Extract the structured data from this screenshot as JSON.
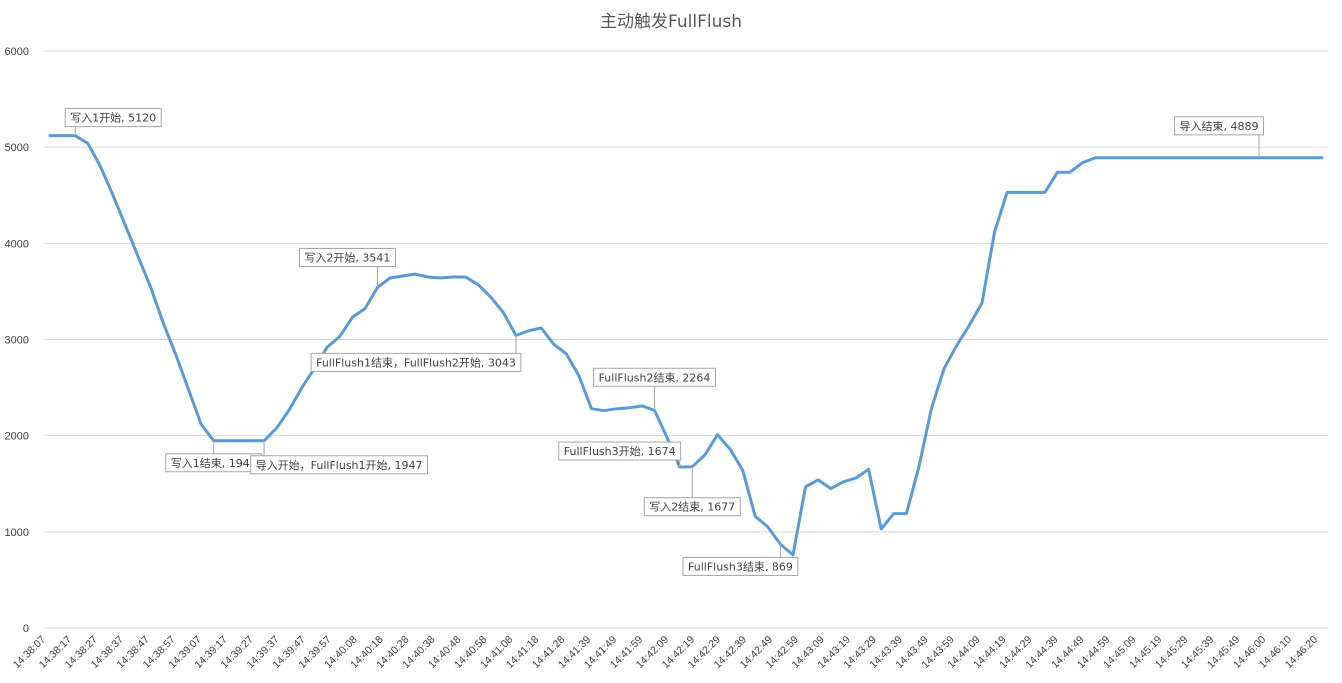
{
  "chart_data": {
    "type": "line",
    "title": "主动触发FullFlush",
    "xlabel": "",
    "ylabel": "",
    "ylim": [
      0,
      6000
    ],
    "yticks": [
      "0",
      "1000",
      "2000",
      "3000",
      "4000",
      "5000",
      "6000"
    ],
    "grid": true,
    "line_color": "#5b9bd5",
    "x_tick_labels": [
      "14:38:07",
      "14:38:17",
      "14:38:27",
      "14:38:37",
      "14:38:47",
      "14:38:57",
      "14:39:07",
      "14:39:17",
      "14:39:27",
      "14:39:37",
      "14:39:47",
      "14:39:57",
      "14:40:08",
      "14:40:18",
      "14:40:28",
      "14:40:38",
      "14:40:48",
      "14:40:58",
      "14:41:08",
      "14:41:18",
      "14:41:28",
      "14:41:39",
      "14:41:49",
      "14:41:59",
      "14:42:09",
      "14:42:19",
      "14:42:29",
      "14:42:39",
      "14:42:49",
      "14:42:59",
      "14:43:09",
      "14:43:19",
      "14:43:29",
      "14:43:39",
      "14:43:49",
      "14:43:59",
      "14:44:09",
      "14:44:19",
      "14:44:29",
      "14:44:39",
      "14:44:49",
      "14:44:59",
      "14:45:09",
      "14:45:19",
      "14:45:29",
      "14:45:39",
      "14:45:49",
      "14:46:00",
      "14:46:10",
      "14:46:20"
    ],
    "series": [
      {
        "values": [
          5120,
          5120,
          5120,
          5040,
          4800,
          4500,
          4180,
          3860,
          3540,
          3170,
          2840,
          2480,
          2120,
          1947,
          1947,
          1947,
          1947,
          1947,
          2080,
          2270,
          2500,
          2700,
          2920,
          3030,
          3230,
          3320,
          3541,
          3640,
          3660,
          3680,
          3650,
          3640,
          3650,
          3650,
          3570,
          3440,
          3280,
          3043,
          3090,
          3120,
          2950,
          2850,
          2620,
          2280,
          2260,
          2280,
          2290,
          2310,
          2264,
          1980,
          1674,
          1677,
          1800,
          2010,
          1860,
          1640,
          1160,
          1050,
          869,
          760,
          1470,
          1540,
          1450,
          1520,
          1560,
          1650,
          1030,
          1190,
          1190,
          1680,
          2290,
          2700,
          2940,
          3150,
          3380,
          4120,
          4530,
          4530,
          4530,
          4530,
          4740,
          4740,
          4840,
          4889,
          4889,
          4889,
          4889,
          4889,
          4889,
          4889,
          4889,
          4889,
          4889,
          4889,
          4889,
          4889,
          4889,
          4889,
          4889,
          4889,
          4889,
          4889
        ]
      }
    ],
    "annotations": [
      {
        "text": "写入1开始, 5120",
        "index": 2
      },
      {
        "text": "写入1结束, 1947",
        "index": 13
      },
      {
        "text": "导入开始，FullFlush1开始, 1947",
        "index": 17
      },
      {
        "text": "写入2开始, 3541",
        "index": 26
      },
      {
        "text": "FullFlush1结束，FullFlush2开始, 3043",
        "index": 37
      },
      {
        "text": "FullFlush2结束, 2264",
        "index": 48
      },
      {
        "text": "FullFlush3开始, 1674",
        "index": 50
      },
      {
        "text": "写入2结束, 1677",
        "index": 51
      },
      {
        "text": "FullFlush3结束, 869",
        "index": 58
      },
      {
        "text": "导入结束, 4889",
        "index": 96
      }
    ]
  }
}
